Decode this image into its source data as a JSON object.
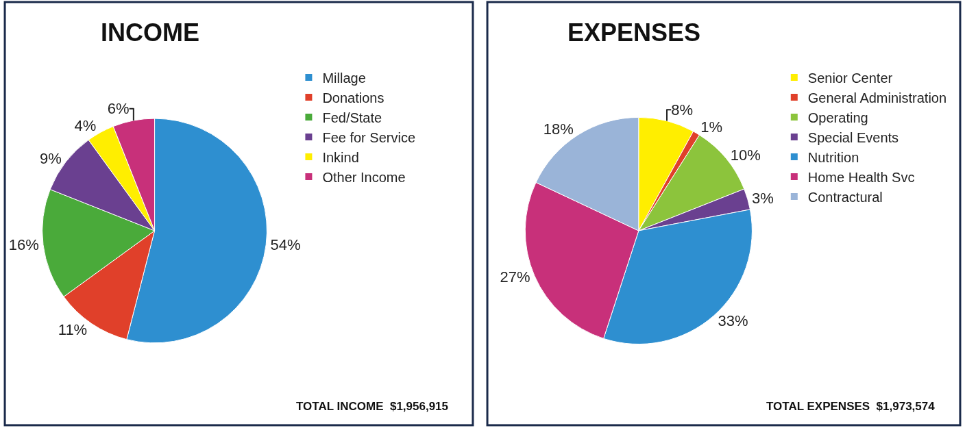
{
  "chart_data": [
    {
      "type": "pie",
      "title": "INCOME",
      "categories": [
        "Millage",
        "Donations",
        "Fed/State",
        "Fee for Service",
        "Inkind",
        "Other Income"
      ],
      "values": [
        54,
        11,
        16,
        9,
        4,
        6
      ],
      "value_labels": [
        "54%",
        "11%",
        "16%",
        "9%",
        "4%",
        "6%"
      ],
      "colors": [
        "#2e8fd0",
        "#e0402a",
        "#4aaa3a",
        "#6a4090",
        "#ffee00",
        "#c8307a"
      ],
      "legend": "right",
      "annotations": [
        "TOTAL INCOME  $1,956,915"
      ]
    },
    {
      "type": "pie",
      "title": "EXPENSES",
      "categories": [
        "Senior Center",
        "General Administration",
        "Operating",
        "Special Events",
        "Nutrition",
        "Home Health Svc",
        "Contractural"
      ],
      "values": [
        8,
        1,
        10,
        3,
        33,
        27,
        18
      ],
      "value_labels": [
        "8%",
        "1%",
        "10%",
        "3%",
        "33%",
        "27%",
        "18%"
      ],
      "colors": [
        "#ffee00",
        "#e0402a",
        "#8cc43c",
        "#6a4090",
        "#2e8fd0",
        "#c8307a",
        "#9ab4d8"
      ],
      "legend": "right",
      "annotations": [
        "TOTAL EXPENSES  $1,973,574"
      ]
    }
  ]
}
